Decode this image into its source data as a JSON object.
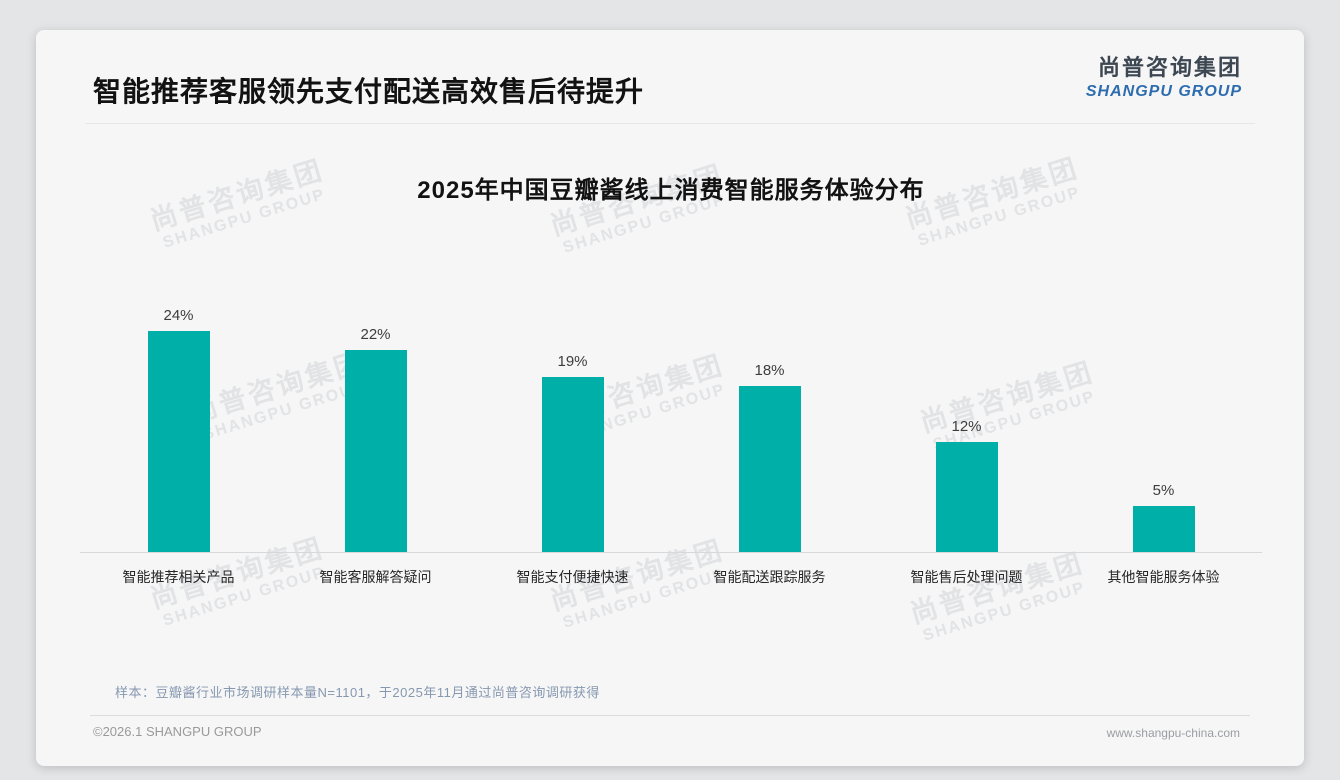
{
  "page": {
    "title": "智能推荐客服领先支付配送高效售后待提升",
    "logo": {
      "cn": "尚普咨询集团",
      "en": "SHANGPU GROUP"
    },
    "watermark": {
      "cn": "尚普咨询集团",
      "en": "SHANGPU GROUP"
    },
    "note": "样本：豆瓣酱行业市场调研样本量N=1101，于2025年11月通过尚普咨询调研获得",
    "footer": {
      "left": "©2026.1 SHANGPU GROUP",
      "right": "www.shangpu-china.com"
    }
  },
  "colors": {
    "bar": "#00afa8",
    "title_text": "#121212",
    "note_text": "#8698af",
    "logo_cn": "#3d4752",
    "logo_en": "#2d6cae",
    "watermark": "#e2e3e5",
    "card_bg": "#f6f6f7",
    "page_bg": "#e4e5e7"
  },
  "chart_data": {
    "type": "bar",
    "title": "2025年中国豆瓣酱线上消费智能服务体验分布",
    "categories": [
      "智能推荐相关产品",
      "智能客服解答疑问",
      "智能支付便捷快速",
      "智能配送跟踪服务",
      "智能售后处理问题",
      "其他智能服务体验"
    ],
    "values": [
      24,
      22,
      19,
      18,
      12,
      5
    ],
    "value_labels": [
      "24%",
      "22%",
      "19%",
      "18%",
      "12%",
      "5%"
    ],
    "unit": "%",
    "xlabel": "",
    "ylabel": "",
    "ylim": [
      0,
      28
    ],
    "grid": false,
    "legend": false,
    "bar_color": "#00afa8"
  }
}
